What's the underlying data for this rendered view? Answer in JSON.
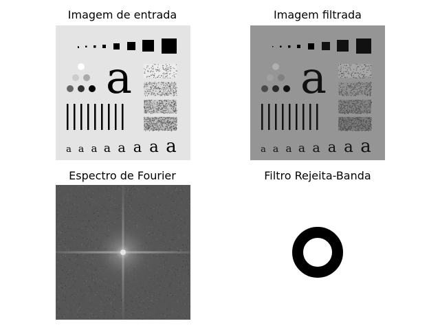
{
  "panels": [
    {
      "title": "Imagem de entrada"
    },
    {
      "title": "Imagem filtrada"
    },
    {
      "title": "Espectro de Fourier"
    },
    {
      "title": "Filtro Rejeita-Banda"
    }
  ],
  "test_pattern": {
    "big_letter": "a",
    "letter_row": [
      "a",
      "a",
      "a",
      "a",
      "a",
      "a",
      "a",
      "a"
    ]
  },
  "colors": {
    "input_bg": "#e4e4e4",
    "filtered_bg": "#959595",
    "spectrum_bg": "#555555",
    "filter_ring": "#000000"
  }
}
